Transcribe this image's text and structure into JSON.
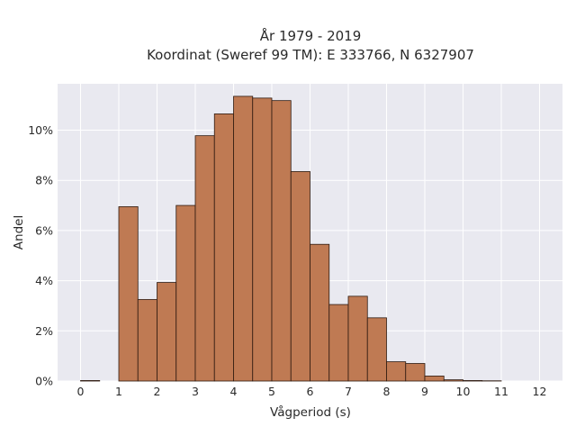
{
  "chart_data": {
    "type": "bar",
    "title": [
      "År 1979 - 2019",
      "Koordinat (Sweref 99 TM): E 333766, N 6327907"
    ],
    "xlabel": "Vågperiod (s)",
    "ylabel": "Andel",
    "bin_width": 0.5,
    "xlim": [
      -0.6,
      12.6
    ],
    "ylim": [
      0,
      11.85
    ],
    "x_ticks": [
      0,
      1,
      2,
      3,
      4,
      5,
      6,
      7,
      8,
      9,
      10,
      11,
      12
    ],
    "y_ticks": [
      0,
      2,
      4,
      6,
      8,
      10
    ],
    "y_tick_labels": [
      "0%",
      "2%",
      "4%",
      "6%",
      "8%",
      "10%"
    ],
    "grid": true,
    "bar_color": "#bf7a53",
    "bar_edge_color": "#2e1a10",
    "background": "#e9e9f0",
    "bins_start": [
      0,
      0.5,
      1,
      1.5,
      2,
      2.5,
      3,
      3.5,
      4,
      4.5,
      5,
      5.5,
      6,
      6.5,
      7,
      7.5,
      8,
      8.5,
      9,
      9.5,
      10,
      10.5,
      11,
      11.5
    ],
    "values": [
      0.02,
      0,
      6.95,
      3.25,
      3.93,
      7.0,
      9.78,
      10.65,
      11.35,
      11.28,
      11.18,
      8.35,
      5.45,
      3.05,
      3.38,
      2.52,
      0.77,
      0.7,
      0.2,
      0.05,
      0.02,
      0.01,
      0,
      0
    ]
  }
}
